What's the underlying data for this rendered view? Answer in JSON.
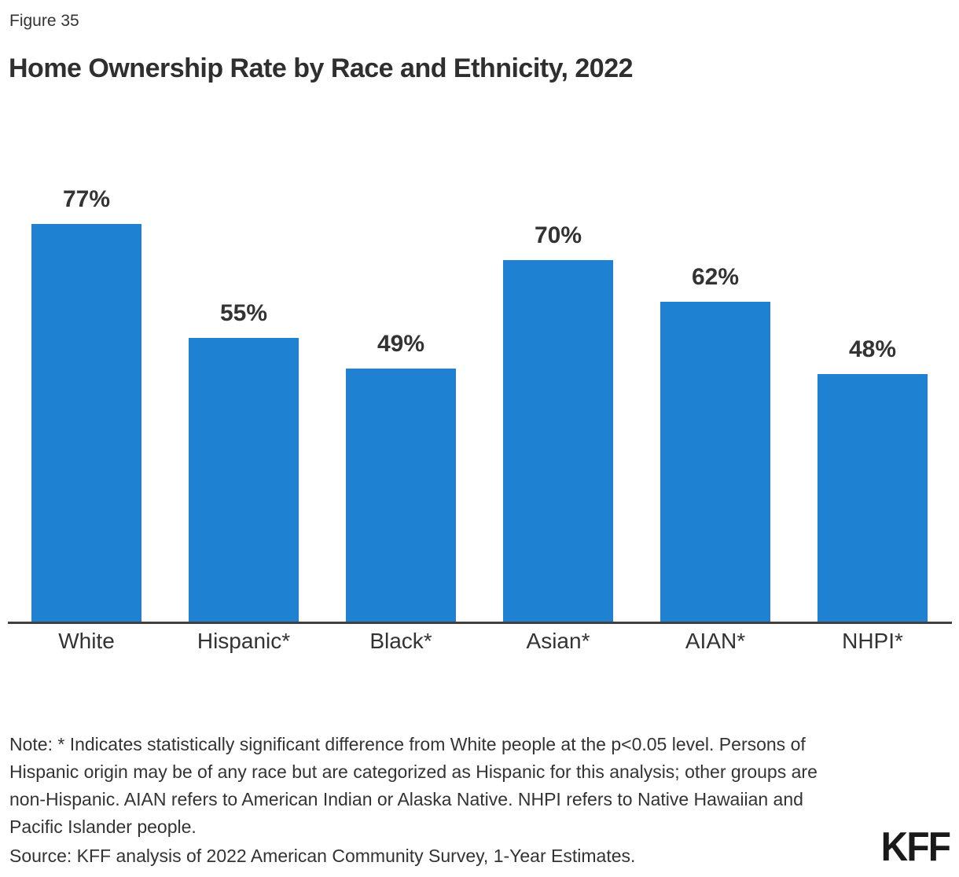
{
  "figure_label": "Figure 35",
  "title": "Home Ownership Rate by Race and Ethnicity, 2022",
  "chart_data": {
    "type": "bar",
    "categories": [
      "White",
      "Hispanic*",
      "Black*",
      "Asian*",
      "AIAN*",
      "NHPI*"
    ],
    "values": [
      77,
      55,
      49,
      70,
      62,
      48
    ],
    "value_labels": [
      "77%",
      "55%",
      "49%",
      "70%",
      "62%",
      "48%"
    ],
    "title": "Home Ownership Rate by Race and Ethnicity, 2022",
    "xlabel": "",
    "ylabel": "",
    "ylim": [
      0,
      87
    ],
    "grid": false,
    "legend": false,
    "bar_color": "#1E81D2",
    "axis_color": "#404040",
    "label_color": "#333333"
  },
  "note": "Note: * Indicates statistically significant difference from White people at the p<0.05 level. Persons of Hispanic origin may be of any race but are categorized as Hispanic for this analysis; other groups are non-Hispanic. AIAN refers to American Indian or Alaska Native. NHPI refers to Native Hawaiian and Pacific Islander people.",
  "source": "Source: KFF analysis of 2022 American Community Survey, 1-Year Estimates.",
  "logo_text": "KFF"
}
